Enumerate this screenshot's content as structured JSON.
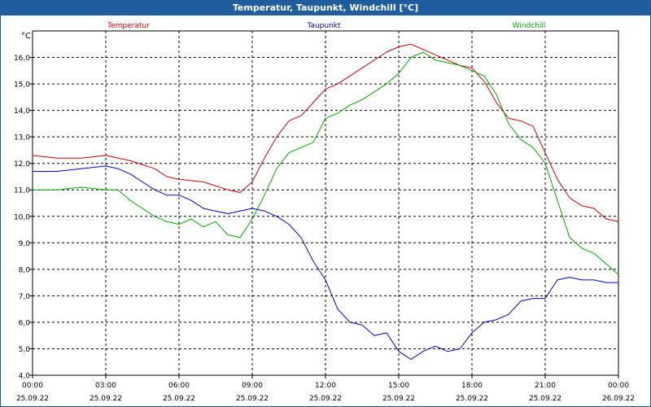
{
  "chart_data": {
    "type": "line",
    "title": "Temperatur, Taupunkt, Windchill [°C]",
    "ylabel": "°C",
    "xlabel": "",
    "ylim": [
      4.0,
      17.0
    ],
    "xlim_hours": [
      0,
      24
    ],
    "grid": true,
    "legend_placement": "top",
    "y_ticks": [
      "4,0",
      "5,0",
      "6,0",
      "7,0",
      "8,0",
      "9,0",
      "10,0",
      "11,0",
      "12,0",
      "13,0",
      "14,0",
      "15,0",
      "16,0"
    ],
    "x_ticks": [
      {
        "time": "00:00",
        "date": "25.09.22"
      },
      {
        "time": "03:00",
        "date": "25.09.22"
      },
      {
        "time": "06:00",
        "date": "25.09.22"
      },
      {
        "time": "09:00",
        "date": "25.09.22"
      },
      {
        "time": "12:00",
        "date": "25.09.22"
      },
      {
        "time": "15:00",
        "date": "25.09.22"
      },
      {
        "time": "18:00",
        "date": "25.09.22"
      },
      {
        "time": "21:00",
        "date": "25.09.22"
      },
      {
        "time": "00:00",
        "date": "26.09.22"
      }
    ],
    "series": [
      {
        "name": "Temperatur",
        "color": "#cc0000",
        "x": [
          0,
          1,
          2,
          3,
          4,
          5,
          5.5,
          6,
          7,
          8,
          8.5,
          9,
          9.5,
          10,
          10.5,
          11,
          11.5,
          12,
          12.5,
          13,
          13.5,
          14,
          14.5,
          15,
          15.5,
          16,
          16.5,
          17,
          17.5,
          18,
          18.5,
          19,
          19.5,
          20,
          20.5,
          21,
          21.5,
          22,
          22.5,
          23,
          23.5,
          24
        ],
        "values": [
          12.3,
          12.2,
          12.2,
          12.3,
          12.1,
          11.8,
          11.5,
          11.4,
          11.3,
          11.0,
          10.9,
          11.3,
          12.2,
          13.0,
          13.6,
          13.8,
          14.3,
          14.8,
          15.0,
          15.3,
          15.6,
          15.9,
          16.2,
          16.4,
          16.5,
          16.3,
          16.1,
          15.9,
          15.7,
          15.6,
          15.1,
          14.3,
          13.7,
          13.6,
          13.4,
          12.4,
          11.4,
          10.7,
          10.4,
          10.3,
          9.9,
          9.8
        ]
      },
      {
        "name": "Taupunkt",
        "color": "#0000cc",
        "x": [
          0,
          1,
          2,
          3,
          3.5,
          4,
          4.5,
          5,
          5.5,
          6,
          6.5,
          7,
          7.5,
          8,
          8.5,
          9,
          9.5,
          10,
          10.5,
          11,
          11.5,
          12,
          12.5,
          13,
          13.5,
          14,
          14.5,
          15,
          15.5,
          16,
          16.5,
          17,
          17.5,
          18,
          18.5,
          19,
          19.5,
          20,
          20.5,
          21,
          21.5,
          22,
          22.5,
          23,
          23.5,
          24
        ],
        "values": [
          11.7,
          11.7,
          11.8,
          11.9,
          11.8,
          11.6,
          11.3,
          11.0,
          10.8,
          10.8,
          10.6,
          10.3,
          10.2,
          10.1,
          10.2,
          10.3,
          10.2,
          10.0,
          9.7,
          9.2,
          8.3,
          7.6,
          6.5,
          6.0,
          5.9,
          5.5,
          5.6,
          4.9,
          4.6,
          4.9,
          5.1,
          4.9,
          5.0,
          5.6,
          6.0,
          6.1,
          6.3,
          6.8,
          6.9,
          6.9,
          7.6,
          7.7,
          7.6,
          7.6,
          7.5,
          7.5
        ]
      },
      {
        "name": "Windchill",
        "color": "#00aa00",
        "x": [
          0,
          1,
          2,
          3,
          3.5,
          4,
          4.5,
          5,
          5.5,
          6,
          6.5,
          7,
          7.5,
          8,
          8.5,
          9,
          9.5,
          10,
          10.5,
          11,
          11.5,
          12,
          12.5,
          13,
          13.5,
          14,
          14.5,
          15,
          15.5,
          16,
          16.5,
          17,
          17.5,
          18,
          18.5,
          19,
          19.5,
          20,
          20.5,
          21,
          21.5,
          22,
          22.5,
          23,
          23.5,
          24
        ],
        "values": [
          11.0,
          11.0,
          11.1,
          11.0,
          11.0,
          10.6,
          10.3,
          10.0,
          9.8,
          9.7,
          9.9,
          9.6,
          9.8,
          9.3,
          9.2,
          9.9,
          10.8,
          11.8,
          12.4,
          12.6,
          12.8,
          13.7,
          13.9,
          14.2,
          14.4,
          14.7,
          15.0,
          15.4,
          16.0,
          16.2,
          15.9,
          15.8,
          15.7,
          15.5,
          15.3,
          14.6,
          13.5,
          12.9,
          12.6,
          12.0,
          10.6,
          9.2,
          8.8,
          8.6,
          8.2,
          7.8
        ]
      }
    ]
  }
}
